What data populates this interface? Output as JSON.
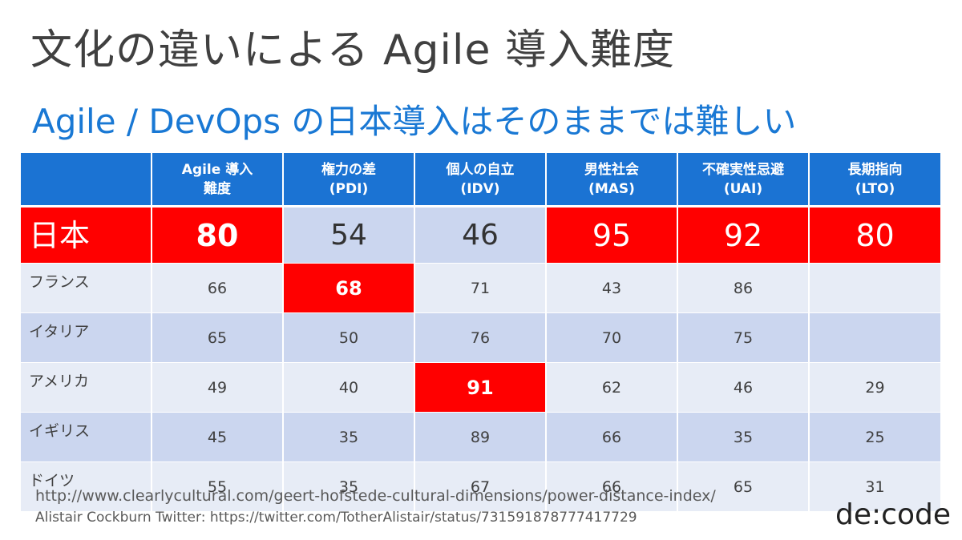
{
  "slide": {
    "title": "文化の違いによる Agile 導入難度",
    "subtitle": "Agile / DevOps の日本導入はそのままでは難しい",
    "source_url": "http://www.clearlycultural.com/geert-hofstede-cultural-dimensions/power-distance-index/",
    "twitter_credit": "Alistair Cockburn Twitter:  https://twitter.com/TotherAlistair/status/731591878777417729",
    "brand": "de:code"
  },
  "table": {
    "headers": [
      [
        "",
        ""
      ],
      [
        "Agile 導入",
        "難度"
      ],
      [
        "権力の差",
        "(PDI)"
      ],
      [
        "個人の自立",
        "(IDV)"
      ],
      [
        "男性社会",
        "(MAS)"
      ],
      [
        "不確実性忌避",
        "(UAI)"
      ],
      [
        "長期指向",
        "(LTO)"
      ]
    ],
    "rows": [
      [
        "日本",
        "80",
        "54",
        "46",
        "95",
        "92",
        "80"
      ],
      [
        "フランス",
        "66",
        "68",
        "71",
        "43",
        "86",
        ""
      ],
      [
        "イタリア",
        "65",
        "50",
        "76",
        "70",
        "75",
        ""
      ],
      [
        "アメリカ",
        "49",
        "40",
        "91",
        "62",
        "46",
        "29"
      ],
      [
        "イギリス",
        "45",
        "35",
        "89",
        "66",
        "35",
        "25"
      ],
      [
        "ドイツ",
        "55",
        "35",
        "67",
        "66",
        "65",
        "31"
      ]
    ],
    "highlight_color": "#ff0000",
    "header_color": "#1b73d3"
  }
}
